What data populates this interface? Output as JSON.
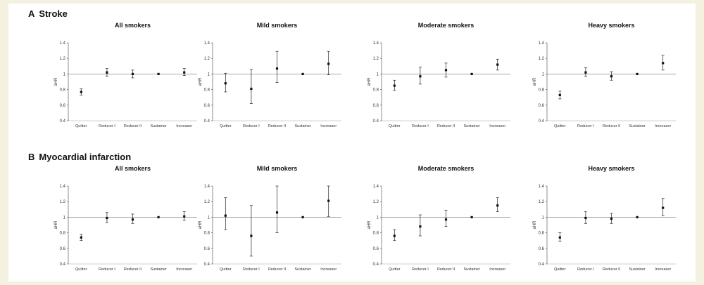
{
  "panels": [
    {
      "letter": "A",
      "title": "Stroke"
    },
    {
      "letter": "B",
      "title": "Myocardial infarction"
    }
  ],
  "chart_data": [
    {
      "type": "scatter",
      "panel": "A",
      "title": "All smokers",
      "ylabel": "aHR",
      "categories": [
        "Quitter",
        "Reducer I",
        "Reducer II",
        "Sustainer",
        "Increaser"
      ],
      "values": [
        0.77,
        1.02,
        1.0,
        1.0,
        1.02
      ],
      "lower": [
        0.73,
        0.97,
        0.95,
        1.0,
        0.98
      ],
      "upper": [
        0.81,
        1.07,
        1.05,
        1.0,
        1.07
      ],
      "ylim": [
        0.4,
        1.4
      ],
      "yticks": [
        "0.4",
        "0.6",
        "0.8",
        "1",
        "1.2",
        "1.4"
      ],
      "reference_line": 1
    },
    {
      "type": "scatter",
      "panel": "A",
      "title": "Mild smokers",
      "ylabel": "aHR",
      "categories": [
        "Quitter",
        "Reducer I",
        "Reducer II",
        "Sustainer",
        "Increaser"
      ],
      "values": [
        0.88,
        0.81,
        1.07,
        1.0,
        1.13
      ],
      "lower": [
        0.77,
        0.62,
        0.89,
        1.0,
        0.99
      ],
      "upper": [
        1.01,
        1.06,
        1.29,
        1.0,
        1.29
      ],
      "ylim": [
        0.4,
        1.4
      ],
      "yticks": [
        "0.4",
        "0.6",
        "0.8",
        "1",
        "1.2",
        "1.4"
      ],
      "reference_line": 1
    },
    {
      "type": "scatter",
      "panel": "A",
      "title": "Moderate smokers",
      "ylabel": "aHR",
      "categories": [
        "Quitter",
        "Reducer I",
        "Reducer II",
        "Sustainer",
        "Increaser"
      ],
      "values": [
        0.85,
        0.97,
        1.05,
        1.0,
        1.12
      ],
      "lower": [
        0.79,
        0.87,
        0.96,
        1.0,
        1.05
      ],
      "upper": [
        0.92,
        1.09,
        1.14,
        1.0,
        1.19
      ],
      "ylim": [
        0.4,
        1.4
      ],
      "yticks": [
        "0.4",
        "0.6",
        "0.8",
        "1",
        "1.2",
        "1.4"
      ],
      "reference_line": 1
    },
    {
      "type": "scatter",
      "panel": "A",
      "title": "Heavy smokers",
      "ylabel": "aHR",
      "categories": [
        "Quitter",
        "Reducer I",
        "Reducer II",
        "Sustainer",
        "Increaser"
      ],
      "values": [
        0.73,
        1.02,
        0.97,
        1.0,
        1.14
      ],
      "lower": [
        0.68,
        0.97,
        0.92,
        1.0,
        1.05
      ],
      "upper": [
        0.78,
        1.08,
        1.03,
        1.0,
        1.24
      ],
      "ylim": [
        0.4,
        1.4
      ],
      "yticks": [
        "0.4",
        "0.6",
        "0.8",
        "1",
        "1.2",
        "1.4"
      ],
      "reference_line": 1
    },
    {
      "type": "scatter",
      "panel": "B",
      "title": "All smokers",
      "ylabel": "aHR",
      "categories": [
        "Quitter",
        "Reducer I",
        "Reducer II",
        "Sustainer",
        "Increaser"
      ],
      "values": [
        0.74,
        0.99,
        0.97,
        1.0,
        1.01
      ],
      "lower": [
        0.7,
        0.93,
        0.92,
        1.0,
        0.96
      ],
      "upper": [
        0.78,
        1.06,
        1.04,
        1.0,
        1.07
      ],
      "ylim": [
        0.4,
        1.4
      ],
      "yticks": [
        "0.4",
        "0.6",
        "0.8",
        "1",
        "1.2",
        "1.4"
      ],
      "reference_line": 1
    },
    {
      "type": "scatter",
      "panel": "B",
      "title": "Mild smokers",
      "ylabel": "aHR",
      "categories": [
        "Quitter",
        "Reducer I",
        "Reducer II",
        "Sustainer",
        "Increaser"
      ],
      "values": [
        1.02,
        0.76,
        1.06,
        1.0,
        1.21
      ],
      "lower": [
        0.84,
        0.5,
        0.8,
        1.0,
        1.01
      ],
      "upper": [
        1.25,
        1.15,
        1.4,
        1.0,
        1.4
      ],
      "ylim": [
        0.4,
        1.4
      ],
      "yticks": [
        "0.4",
        "0.6",
        "0.8",
        "1",
        "1.2",
        "1.4"
      ],
      "reference_line": 1
    },
    {
      "type": "scatter",
      "panel": "B",
      "title": "Moderate smokers",
      "ylabel": "aHR",
      "categories": [
        "Quitter",
        "Reducer I",
        "Reducer II",
        "Sustainer",
        "Increaser"
      ],
      "values": [
        0.76,
        0.88,
        0.97,
        1.0,
        1.15
      ],
      "lower": [
        0.7,
        0.76,
        0.88,
        1.0,
        1.07
      ],
      "upper": [
        0.84,
        1.03,
        1.09,
        1.0,
        1.25
      ],
      "ylim": [
        0.4,
        1.4
      ],
      "yticks": [
        "0.4",
        "0.6",
        "0.8",
        "1",
        "1.2",
        "1.4"
      ],
      "reference_line": 1
    },
    {
      "type": "scatter",
      "panel": "B",
      "title": "Heavy smokers",
      "ylabel": "aHR",
      "categories": [
        "Quitter",
        "Reducer I",
        "Reducer II",
        "Sustainer",
        "Increaser"
      ],
      "values": [
        0.74,
        0.99,
        0.98,
        1.0,
        1.12
      ],
      "lower": [
        0.69,
        0.92,
        0.92,
        1.0,
        1.02
      ],
      "upper": [
        0.8,
        1.07,
        1.05,
        1.0,
        1.24
      ],
      "ylim": [
        0.4,
        1.4
      ],
      "yticks": [
        "0.4",
        "0.6",
        "0.8",
        "1",
        "1.2",
        "1.4"
      ],
      "reference_line": 1
    }
  ]
}
